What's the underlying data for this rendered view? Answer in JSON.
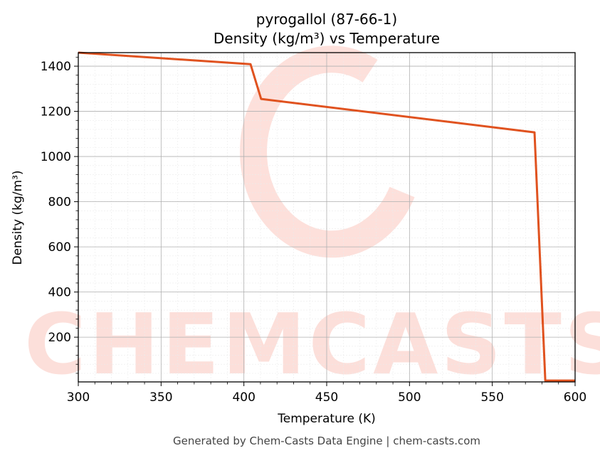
{
  "chart_data": {
    "type": "line",
    "title": "pyrogallol (87-66-1)",
    "subtitle": "Density (kg/m³) vs Temperature",
    "xlabel": "Temperature (K)",
    "ylabel": "Density (kg/m³)",
    "xlim": [
      300,
      600
    ],
    "ylim": [
      2,
      1460
    ],
    "xticks": [
      300,
      350,
      400,
      450,
      500,
      550,
      600
    ],
    "yticks": [
      200,
      400,
      600,
      800,
      1000,
      1200,
      1400
    ],
    "grid": true,
    "series": [
      {
        "name": "Density",
        "color": "#e0521f",
        "x": [
          300,
          404,
          410.4,
          575.5,
          582,
          600
        ],
        "y": [
          1460,
          1409,
          1255,
          1107,
          8,
          8
        ]
      }
    ],
    "watermark": "CHEMCASTS",
    "footer": "Generated by Chem-Casts Data Engine | chem-casts.com"
  }
}
